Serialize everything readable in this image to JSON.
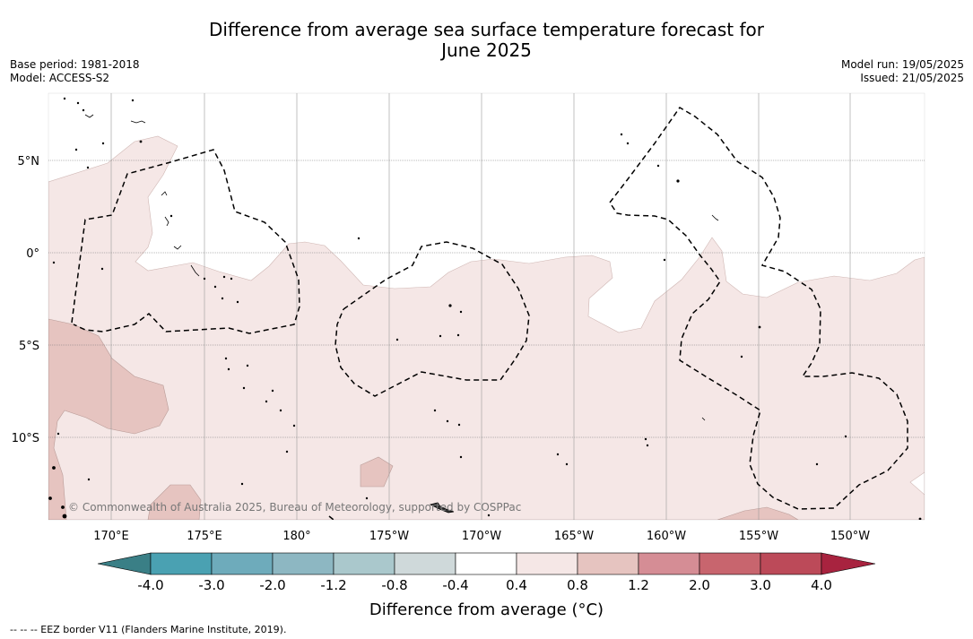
{
  "title_line1": "Difference from average sea surface temperature forecast for",
  "title_line2": "June 2025",
  "base_period": "Base period: 1981-2018",
  "model": "Model: ACCESS-S2",
  "model_run": "Model run: 19/05/2025",
  "issued": "Issued: 21/05/2025",
  "copyright": "© Commonwealth of Australia 2025, Bureau of Meteorology, supported by COSPPac",
  "lat_labels": [
    "5°N",
    "0°",
    "5°S",
    "10°S"
  ],
  "lon_labels": [
    "170°E",
    "175°E",
    "180°",
    "175°W",
    "170°W",
    "165°W",
    "160°W",
    "155°W",
    "150°W"
  ],
  "colorbar": {
    "title": "Difference from average (°C)",
    "tick_labels": [
      "-4.0",
      "-3.0",
      "-2.0",
      "-1.2",
      "-0.8",
      "-0.4",
      "0.4",
      "0.8",
      "1.2",
      "2.0",
      "3.0",
      "4.0"
    ],
    "colors": [
      "#3a7f86",
      "#4aa1b2",
      "#6eabbb",
      "#8db7c2",
      "#aac8cc",
      "#cfd9da",
      "#ffffff",
      "#f5e7e6",
      "#e6c4c0",
      "#d58d95",
      "#c8656e",
      "#bc4a59",
      "#a8233f"
    ]
  },
  "footer_note": "--  --  -- EEZ border V11 (Flanders Marine Institute, 2019)."
}
